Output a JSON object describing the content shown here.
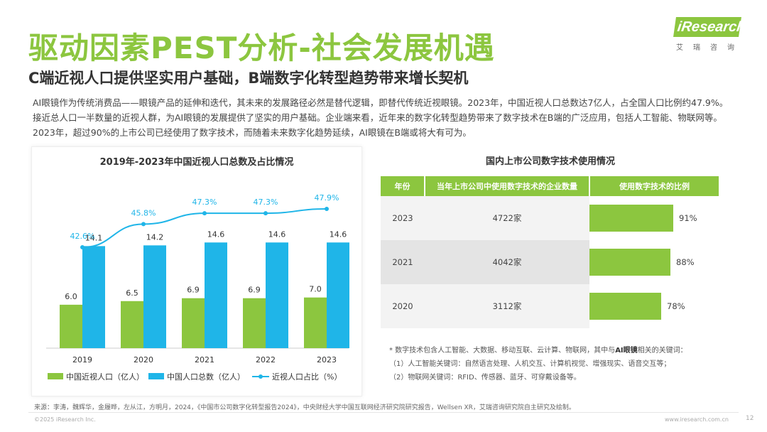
{
  "header": {
    "title": "驱动因素PEST分析-社会发展机遇",
    "subtitle": "C端近视人口提供坚实用户基础，B端数字化转型趋势带来增长契机",
    "logo_text": "iResearch",
    "logo_sub": "艾瑞咨询"
  },
  "intro": "AI眼镜作为传统消费品——眼镜产品的延伸和迭代，其未来的发展路径必然是替代逻辑，即替代传统近视眼镜。2023年，中国近视人口总数达7亿人，占全国人口比例约47.9%。接近总人口一半数量的近视人群，为AI眼镜的发展提供了坚实的用户基础。企业端来看，近年来的数字化转型趋势带来了数字技术在B端的广泛应用，包括人工智能、物联网等。2023年，超过90%的上市公司已经使用了数字技术，而随着未来数字化趋势延续，AI眼镜在B端或将大有可为。",
  "chart_data": {
    "type": "bar",
    "title": "2019年-2023年中国近视人口总数及占比情况",
    "categories": [
      "2019",
      "2020",
      "2021",
      "2022",
      "2023"
    ],
    "series": [
      {
        "name": "中国近视人口（亿人）",
        "type": "bar",
        "color": "#8cc63f",
        "values": [
          6.0,
          6.5,
          6.9,
          6.9,
          7.0
        ],
        "labels": [
          "6.0",
          "6.5",
          "6.9",
          "6.9",
          "7.0"
        ]
      },
      {
        "name": "中国人口总数（亿人）",
        "type": "bar",
        "color": "#1fb5e8",
        "values": [
          14.1,
          14.2,
          14.6,
          14.6,
          14.6
        ],
        "labels": [
          "14.1",
          "14.2",
          "14.6",
          "14.6",
          "14.6"
        ]
      },
      {
        "name": "近视人口占比（%）",
        "type": "line",
        "color": "#1fb5e8",
        "values": [
          42.6,
          45.8,
          47.3,
          47.3,
          47.9
        ],
        "labels": [
          "42.6%",
          "45.8%",
          "47.3%",
          "47.3%",
          "47.9%"
        ]
      }
    ],
    "ylim": [
      0,
      16
    ],
    "legend": "bottom"
  },
  "table": {
    "title": "国内上市公司数字技术使用情况",
    "headers": [
      "年份",
      "当年上市公司中使用数字技术的企业数量",
      "使用数字技术的比例"
    ],
    "rows": [
      {
        "year": "2023",
        "count": "4722家",
        "ratio": 91,
        "ratio_label": "91%"
      },
      {
        "year": "2021",
        "count": "4042家",
        "ratio": 88,
        "ratio_label": "88%"
      },
      {
        "year": "2020",
        "count": "3112家",
        "ratio": 78,
        "ratio_label": "78%"
      }
    ]
  },
  "notes": {
    "line1_prefix": "* 数字技术包含人工智能、大数据、移动互联、云计算、物联网，其中与",
    "line1_bold": "AI眼镜",
    "line1_suffix": "相关的关键词：",
    "line2": "（1）人工智能关键词：自然语言处理、人机交互、计算机视觉、增强现实、语音交互等；",
    "line3": "（2）物联网关键词：RFID、传感器、蓝牙、可穿戴设备等。"
  },
  "footer": {
    "source": "来源：李涛，魏辉华，金履晔，左从江，方明月，2024，《中国市公司数字化转型报告2024》，中央财经大学中国互联网经济研究院研究报告，Wellsen XR，艾瑞咨询研究院自主研究及绘制。",
    "copyright": "©2025 iResearch Inc.",
    "website": "www.iresearch.com.cn",
    "page": "12"
  }
}
